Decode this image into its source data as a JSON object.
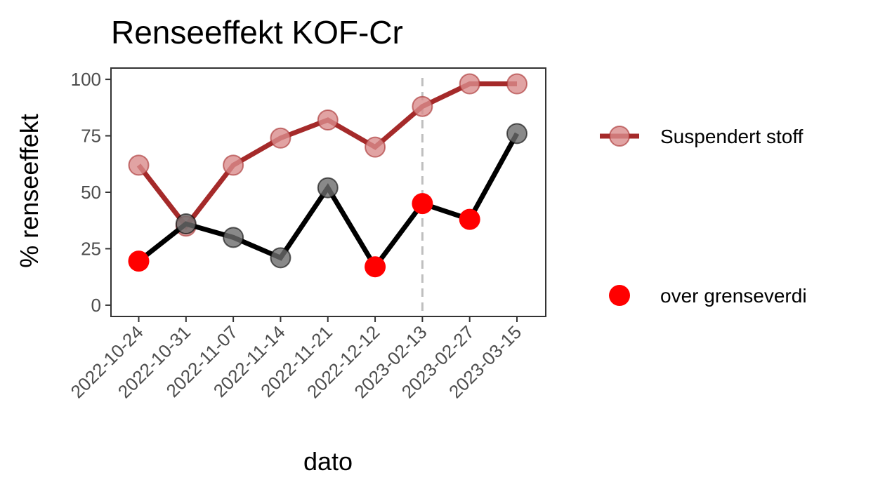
{
  "chart_data": {
    "type": "line",
    "title": "Renseeffekt KOF-Cr",
    "xlabel": "dato",
    "ylabel": "% renseeffekt",
    "categories": [
      "2022-10-24",
      "2022-10-31",
      "2022-11-07",
      "2022-11-14",
      "2022-11-21",
      "2022-12-12",
      "2023-02-13",
      "2023-02-27",
      "2023-03-15"
    ],
    "y_ticks": [
      "0",
      "25",
      "50",
      "75",
      "100"
    ],
    "ylim": [
      -5,
      105
    ],
    "grid": false,
    "vline": {
      "category": "2023-02-13",
      "style": "dashed",
      "color": "#bfbfbf"
    },
    "series": [
      {
        "name": "Suspendert stoff",
        "color": "#a52a2a",
        "point_color": "#d98c8c",
        "values": [
          62,
          35,
          62,
          74,
          82,
          70,
          88,
          98,
          98
        ]
      },
      {
        "color": "#000000",
        "point_color": "#6b6b6b",
        "values": [
          19.5,
          36,
          30,
          21,
          52,
          17,
          45,
          38,
          76
        ],
        "over_limit": [
          true,
          false,
          false,
          false,
          false,
          true,
          true,
          true,
          false
        ]
      }
    ],
    "legend": {
      "position": "right",
      "items": [
        {
          "label": "Suspendert stoff",
          "type": "line-point",
          "color": "#a52a2a",
          "point_color": "#d98c8c"
        },
        {
          "label": "over grenseverdi",
          "type": "point",
          "color": "#ff0000"
        }
      ]
    },
    "highlight_color": "#ff0000"
  }
}
